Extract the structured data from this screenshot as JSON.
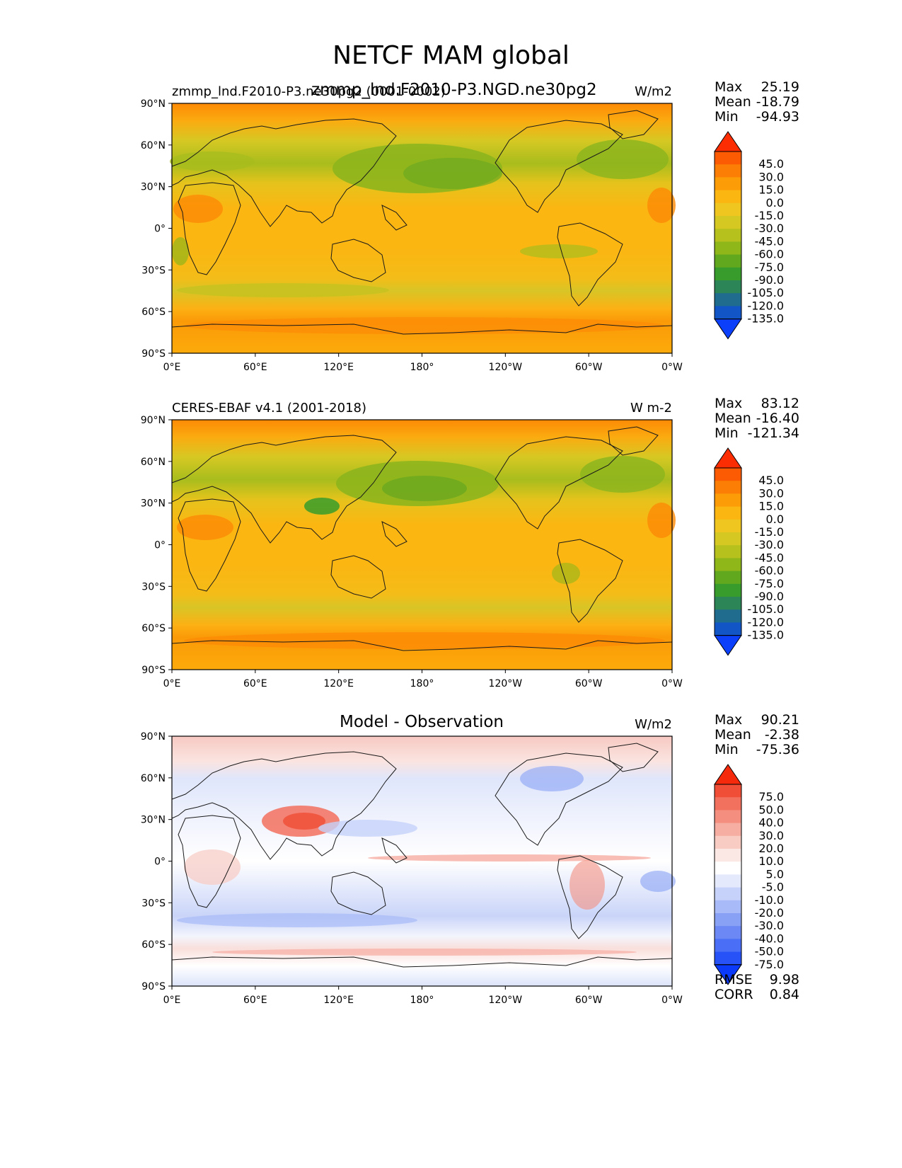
{
  "figure": {
    "title": "NETCF MAM global",
    "lat_ticks": [
      "90°N",
      "60°N",
      "30°N",
      "0°",
      "30°S",
      "60°S",
      "90°S"
    ],
    "lon_ticks": [
      "0°E",
      "60°E",
      "120°E",
      "180°",
      "120°W",
      "60°W",
      "0°W"
    ]
  },
  "panels": [
    {
      "left_title": "zmmp_lnd.F2010-P3.ne30pg2 (0001-0002)",
      "center_title": "zmmp_lnd.F2010-P3.NGD.ne30pg2",
      "units": "W/m2",
      "stats": [
        {
          "label": "Max",
          "value": "25.19"
        },
        {
          "label": "Mean",
          "value": "-18.79"
        },
        {
          "label": "Min",
          "value": "-94.93"
        }
      ],
      "colorbar": {
        "levels": [
          "45.0",
          "30.0",
          "15.0",
          "0.0",
          "-15.0",
          "-30.0",
          "-45.0",
          "-60.0",
          "-75.0",
          "-90.0",
          "-105.0",
          "-120.0",
          "-135.0"
        ],
        "colors": [
          "#fd2d03",
          "#fc5a03",
          "#fc7e05",
          "#fc9c07",
          "#fbb612",
          "#eec61f",
          "#d6c823",
          "#b6c11d",
          "#90b71a",
          "#62a81e",
          "#389c2c",
          "#2c8557",
          "#1f6c8f",
          "#1155c7",
          "#0b3ffa"
        ]
      }
    },
    {
      "left_title": "CERES-EBAF v4.1 (2001-2018)",
      "center_title": "",
      "units": "W m-2",
      "stats": [
        {
          "label": "Max",
          "value": "83.12"
        },
        {
          "label": "Mean",
          "value": "-16.40"
        },
        {
          "label": "Min",
          "value": "-121.34"
        }
      ],
      "colorbar": {
        "levels": [
          "45.0",
          "30.0",
          "15.0",
          "0.0",
          "-15.0",
          "-30.0",
          "-45.0",
          "-60.0",
          "-75.0",
          "-90.0",
          "-105.0",
          "-120.0",
          "-135.0"
        ],
        "colors": [
          "#fd2d03",
          "#fc5a03",
          "#fc7e05",
          "#fc9c07",
          "#fbb612",
          "#eec61f",
          "#d6c823",
          "#b6c11d",
          "#90b71a",
          "#62a81e",
          "#389c2c",
          "#2c8557",
          "#1f6c8f",
          "#1155c7",
          "#0b3ffa"
        ]
      }
    },
    {
      "left_title": "",
      "center_title": "Model - Observation",
      "units": "W/m2",
      "stats": [
        {
          "label": "Max",
          "value": "90.21"
        },
        {
          "label": "Mean",
          "value": "-2.38"
        },
        {
          "label": "Min",
          "value": "-75.36"
        }
      ],
      "extra_stats": [
        {
          "label": "RMSE",
          "value": "9.98"
        },
        {
          "label": "CORR",
          "value": "0.84"
        }
      ],
      "colorbar": {
        "levels": [
          "75.0",
          "50.0",
          "40.0",
          "30.0",
          "20.0",
          "10.0",
          "5.0",
          "-5.0",
          "-10.0",
          "-20.0",
          "-30.0",
          "-40.0",
          "-50.0",
          "-75.0"
        ],
        "colors": [
          "#f5290b",
          "#f04e36",
          "#f2705e",
          "#f48f80",
          "#f6ada2",
          "#f8cbc3",
          "#fbe7e3",
          "#ffffff",
          "#e4e9fc",
          "#c6d2fa",
          "#a8baf8",
          "#89a1f5",
          "#6b88f4",
          "#4a6ef5",
          "#2652f7",
          "#0b3af8"
        ]
      }
    }
  ]
}
